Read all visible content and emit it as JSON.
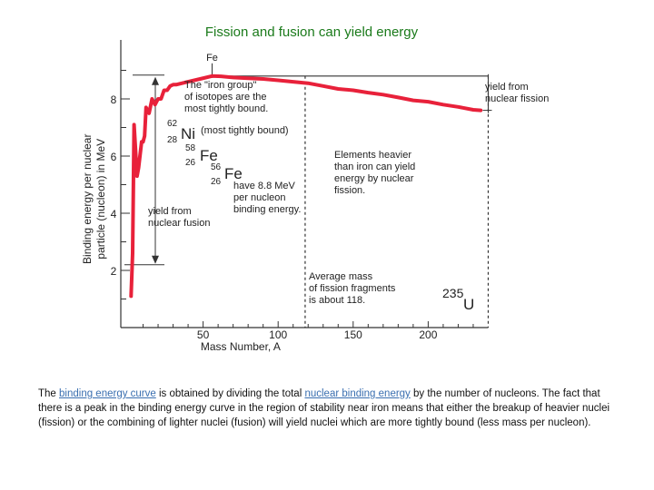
{
  "slide": {
    "title": "Fission and fusion can yield energy"
  },
  "chart_data": {
    "type": "line",
    "xlabel": "Mass Number, A",
    "ylabel_lines": [
      "Binding energy per nuclear",
      "particle (nucleon) in MeV"
    ],
    "xlim": [
      0,
      240
    ],
    "ylim": [
      0,
      10
    ],
    "x_ticks": [
      50,
      100,
      150,
      200
    ],
    "y_ticks": [
      2,
      4,
      6,
      8
    ],
    "series": [
      {
        "x": [
          2,
          3,
          4,
          6,
          7,
          9,
          10,
          11,
          12,
          14,
          16,
          18,
          20,
          22,
          24,
          26,
          28,
          30,
          32,
          40,
          48,
          56,
          62,
          70,
          80,
          90,
          100,
          110,
          120,
          130,
          140,
          150,
          160,
          170,
          180,
          190,
          200,
          210,
          220,
          230,
          235
        ],
        "y": [
          1.1,
          2.6,
          7.1,
          5.3,
          5.6,
          6.5,
          6.5,
          6.7,
          7.7,
          7.5,
          8.0,
          7.8,
          8.0,
          8.0,
          8.3,
          8.3,
          8.45,
          8.5,
          8.5,
          8.6,
          8.7,
          8.8,
          8.79,
          8.75,
          8.72,
          8.7,
          8.65,
          8.6,
          8.55,
          8.45,
          8.35,
          8.3,
          8.22,
          8.15,
          8.05,
          7.95,
          7.9,
          7.8,
          7.72,
          7.62,
          7.6
        ]
      }
    ],
    "reference_levels": {
      "iron_peak": 8.8,
      "uranium": 7.6,
      "fusion_yield_bottom": 2.2
    },
    "iron_x": 56,
    "fission_fragment_x": 118,
    "annotations": {
      "fe_top": "Fe",
      "iron_group": [
        "The \"iron group\"",
        "of isotopes are the",
        "most tightly bound."
      ],
      "ni_mass": "62",
      "ni_number": "28",
      "ni_symbol": "Ni",
      "ni_note": "(most tightly bound)",
      "fe58_mass": "58",
      "fe58_number": "26",
      "fe58_symbol": "Fe",
      "fe56_mass": "56",
      "fe56_number": "26",
      "fe56_symbol": "Fe",
      "fe56_note": [
        "have 8.8 MeV",
        "per nucleon",
        "binding energy."
      ],
      "fusion_yield": [
        "yield from",
        "nuclear fusion"
      ],
      "heavier": [
        "Elements heavier",
        "than iron can yield",
        "energy by nuclear",
        "fission."
      ],
      "average_mass": [
        "Average mass",
        "of fission fragments",
        "is about 118."
      ],
      "u_mass": "235",
      "u_symbol": "U",
      "fission_yield": [
        "yield from",
        "nuclear fission"
      ]
    },
    "colors": {
      "curve": "#e8213a",
      "axes": "#333333",
      "title": "#1a7a1a"
    }
  },
  "caption": {
    "p1": "The ",
    "link1": "binding energy curve",
    "p2": " is obtained by dividing the total ",
    "link2": "nuclear binding energy",
    "p3": " by the number of nucleons. The fact that there is a peak in the binding energy curve in the region of stability near iron means that either the breakup of heavier nuclei (fission) or the combining of lighter nuclei (fusion) will yield nuclei which are more tightly bound (less mass per nucleon)."
  }
}
